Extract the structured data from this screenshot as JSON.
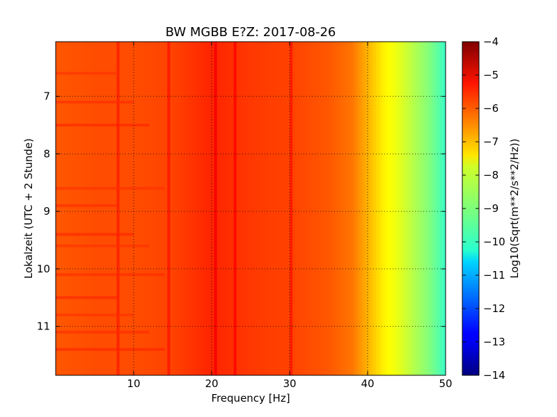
{
  "chart_data": {
    "type": "heatmap",
    "title": "BW MGBB E?Z: 2017-08-26",
    "xlabel": "Frequency [Hz]",
    "ylabel": "Lokalzeit (UTC + 2 Stunde)",
    "xlim": [
      0,
      50
    ],
    "ylim": [
      11.85,
      6.05
    ],
    "x_ticks": [
      10,
      20,
      30,
      40,
      50
    ],
    "y_ticks": [
      7,
      8,
      9,
      10,
      11
    ],
    "grid": true,
    "colormap": "jet",
    "colorbar": {
      "label": "Log10(Sqrt(m**2/s**2/Hz))",
      "range": [
        -14,
        -4
      ],
      "ticks": [
        -4,
        -5,
        -6,
        -7,
        -8,
        -9,
        -10,
        -11,
        -12,
        -13,
        -14
      ]
    },
    "spectral_profile": {
      "frequency_hz": [
        0,
        5,
        10,
        15,
        20,
        25,
        30,
        35,
        38,
        40,
        42,
        44,
        46,
        48,
        50
      ],
      "log10_amplitude": [
        -6.1,
        -6.0,
        -6.0,
        -5.9,
        -5.6,
        -5.8,
        -5.9,
        -6.1,
        -6.4,
        -7.0,
        -7.6,
        -8.0,
        -8.5,
        -9.0,
        -9.7
      ]
    },
    "vertical_lines_hz": [
      8,
      14.5,
      20.5,
      23,
      30.2
    ],
    "horizontal_bands_h": [
      6.6,
      7.1,
      7.5,
      8.6,
      8.9,
      9.4,
      9.6,
      10.1,
      10.5,
      10.8,
      11.1,
      11.4
    ]
  }
}
